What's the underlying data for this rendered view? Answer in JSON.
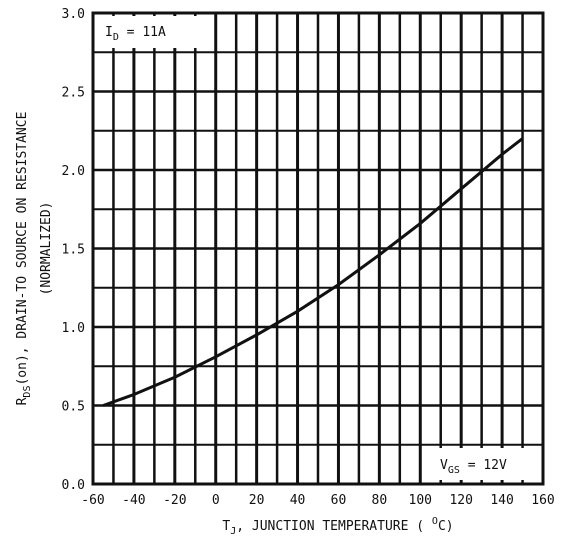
{
  "chart_data": {
    "type": "line",
    "xlabel": "T J, JUNCTION TEMPERATURE ( °C)",
    "ylabel": "RDS(on), DRAIN-TO SOURCE ON RESISTANCE (NORMALIZED)",
    "xlim": [
      -60,
      160
    ],
    "ylim": [
      0.0,
      3.0
    ],
    "xticks": [
      -60,
      -40,
      -20,
      0,
      20,
      40,
      60,
      80,
      100,
      120,
      140,
      160
    ],
    "yticks": [
      0.0,
      0.5,
      1.0,
      1.5,
      2.0,
      2.5,
      3.0
    ],
    "xtick_labels": [
      "-60",
      "-40",
      "-20",
      "0",
      "20",
      "40",
      "60",
      "80",
      "100",
      "120",
      "140",
      "160"
    ],
    "ytick_labels": [
      "0.0",
      "0.5",
      "1.0",
      "1.5",
      "2.0",
      "2.5",
      "3.0"
    ],
    "grid": true,
    "series": [
      {
        "x": [
          -55,
          -40,
          -20,
          0,
          20,
          40,
          60,
          80,
          100,
          120,
          140,
          150
        ],
        "y": [
          0.5,
          0.57,
          0.68,
          0.81,
          0.95,
          1.1,
          1.27,
          1.46,
          1.66,
          1.88,
          2.1,
          2.2
        ]
      }
    ],
    "annotations": {
      "id_sym": "I",
      "id_sub": "D",
      "id_val": " = 11A",
      "vgs_sym": "V",
      "vgs_sub": "GS",
      "vgs_val": " = 12V"
    },
    "axis_text": {
      "x_sym": "T",
      "x_sub": "J",
      "x_rest": ", JUNCTION TEMPERATURE ( ",
      "x_unit_sup": "O",
      "x_unit": "C)",
      "y_sym": "R",
      "y_sub": "DS",
      "y_rest": "(on), DRAIN-TO SOURCE ON RESISTANCE",
      "y_line2": "(NORMALIZED)"
    }
  }
}
